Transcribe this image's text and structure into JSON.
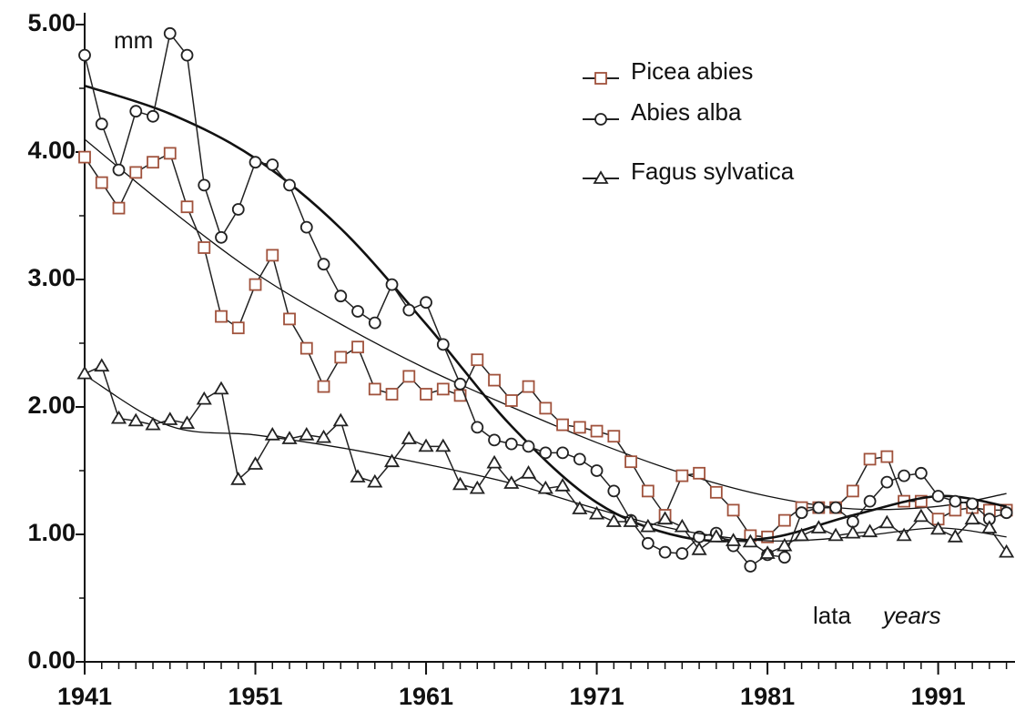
{
  "chart_data": {
    "type": "line",
    "y_unit": "mm",
    "annotations": [
      "lata",
      "years"
    ],
    "x": [
      1941,
      1942,
      1943,
      1944,
      1945,
      1946,
      1947,
      1948,
      1949,
      1950,
      1951,
      1952,
      1953,
      1954,
      1955,
      1956,
      1957,
      1958,
      1959,
      1960,
      1961,
      1962,
      1963,
      1964,
      1965,
      1966,
      1967,
      1968,
      1969,
      1970,
      1971,
      1972,
      1973,
      1974,
      1975,
      1976,
      1977,
      1978,
      1979,
      1980,
      1981,
      1982,
      1983,
      1984,
      1985,
      1986,
      1987,
      1988,
      1989,
      1990,
      1991,
      1992,
      1993,
      1994,
      1995
    ],
    "xlim": [
      1941,
      1995.5
    ],
    "xticks": [
      1941,
      1951,
      1961,
      1971,
      1981,
      1991
    ],
    "ylim": [
      0,
      5
    ],
    "yticks": [
      {
        "value": 0,
        "label": "0.00"
      },
      {
        "value": 1,
        "label": "1.00"
      },
      {
        "value": 2,
        "label": "2.00"
      },
      {
        "value": 3,
        "label": "3.00"
      },
      {
        "value": 4,
        "label": "4.00"
      },
      {
        "value": 5,
        "label": "5.00"
      }
    ],
    "trend_x": [
      1941,
      1946,
      1951,
      1956,
      1961,
      1966,
      1971,
      1976,
      1981,
      1986,
      1991,
      1995
    ],
    "series": [
      {
        "name": "Picea abies",
        "color": "#a0523c",
        "marker": "square",
        "values": [
          3.96,
          3.76,
          3.56,
          3.84,
          3.92,
          3.99,
          3.57,
          3.25,
          2.71,
          2.62,
          2.96,
          3.19,
          2.69,
          2.46,
          2.16,
          2.39,
          2.47,
          2.14,
          2.1,
          2.24,
          2.1,
          2.14,
          2.09,
          2.37,
          2.21,
          2.05,
          2.16,
          1.99,
          1.86,
          1.84,
          1.81,
          1.77,
          1.57,
          1.34,
          1.15,
          1.46,
          1.48,
          1.33,
          1.19,
          0.99,
          0.98,
          1.11,
          1.21,
          1.21,
          1.21,
          1.34,
          1.59,
          1.61,
          1.26,
          1.26,
          1.12,
          1.19,
          1.21,
          1.19,
          1.19
        ],
        "trend": [
          4.1,
          3.55,
          3.05,
          2.65,
          2.3,
          2.0,
          1.72,
          1.48,
          1.3,
          1.2,
          1.22,
          1.32
        ]
      },
      {
        "name": "Abies alba",
        "color": "#222222",
        "marker": "circle",
        "values": [
          4.76,
          4.22,
          3.86,
          4.32,
          4.28,
          4.93,
          4.76,
          3.74,
          3.33,
          3.55,
          3.92,
          3.9,
          3.74,
          3.41,
          3.12,
          2.87,
          2.75,
          2.66,
          2.96,
          2.76,
          2.82,
          2.49,
          2.18,
          1.84,
          1.74,
          1.71,
          1.69,
          1.64,
          1.64,
          1.59,
          1.5,
          1.34,
          1.11,
          0.93,
          0.86,
          0.85,
          0.98,
          1.01,
          0.91,
          0.75,
          0.84,
          0.82,
          1.17,
          1.21,
          1.21,
          1.1,
          1.26,
          1.41,
          1.46,
          1.48,
          1.3,
          1.26,
          1.24,
          1.12,
          1.17
        ],
        "trend": [
          4.52,
          4.3,
          3.95,
          3.4,
          2.65,
          1.85,
          1.25,
          0.98,
          0.97,
          1.15,
          1.3,
          1.22
        ]
      },
      {
        "name": "Fagus sylvatica",
        "color": "#222222",
        "marker": "triangle",
        "values": [
          2.26,
          2.32,
          1.91,
          1.89,
          1.86,
          1.9,
          1.87,
          2.06,
          2.14,
          1.43,
          1.55,
          1.78,
          1.75,
          1.78,
          1.76,
          1.89,
          1.45,
          1.41,
          1.57,
          1.75,
          1.69,
          1.69,
          1.39,
          1.36,
          1.56,
          1.4,
          1.48,
          1.36,
          1.38,
          1.2,
          1.16,
          1.1,
          1.1,
          1.06,
          1.12,
          1.06,
          0.88,
          0.98,
          0.95,
          0.94,
          0.85,
          0.91,
          0.99,
          1.05,
          0.99,
          1.01,
          1.02,
          1.09,
          0.99,
          1.14,
          1.04,
          0.98,
          1.12,
          1.05,
          0.86
        ],
        "trend": [
          2.25,
          1.85,
          1.78,
          1.68,
          1.55,
          1.4,
          1.2,
          1.03,
          0.95,
          0.98,
          1.05,
          0.98
        ]
      }
    ]
  }
}
